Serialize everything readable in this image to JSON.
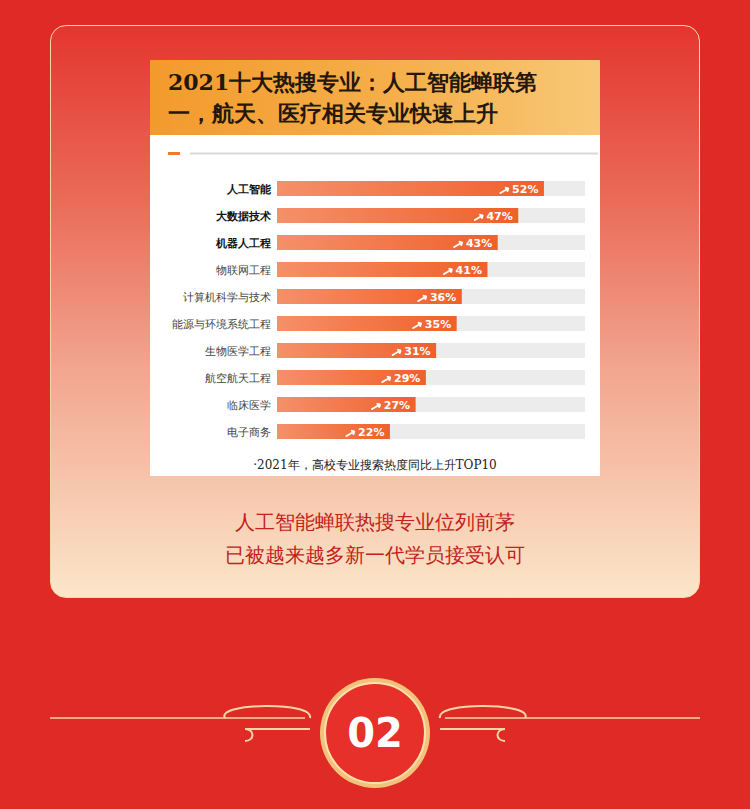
{
  "chart_data": {
    "type": "bar",
    "orientation": "horizontal",
    "title": "2021十大热搜专业：人工智能蝉联第一，航天、医疗相关专业快速上升",
    "annotations": [
      "·2021年，高校专业搜索热度同比上升TOP10"
    ],
    "categories": [
      "人工智能",
      "大数据技术",
      "机器人工程",
      "物联网工程",
      "计算机科学与技术",
      "能源与环境系统工程",
      "生物医学工程",
      "航空航天工程",
      "临床医学",
      "电子商务"
    ],
    "values": [
      52,
      47,
      43,
      41,
      36,
      35,
      31,
      29,
      27,
      22
    ],
    "value_labels": [
      "52%",
      "47%",
      "43%",
      "41%",
      "36%",
      "35%",
      "31%",
      "29%",
      "27%",
      "22%"
    ],
    "color": "#f0602a",
    "xlim": [
      0,
      60
    ],
    "xticks": [],
    "grid": false,
    "data_labels": true,
    "tick_labels": "y"
  },
  "caption": [
    "人工智能蝉联热搜专业位列前茅",
    "已被越来越多新一代学员接受认可"
  ],
  "badge": "02"
}
